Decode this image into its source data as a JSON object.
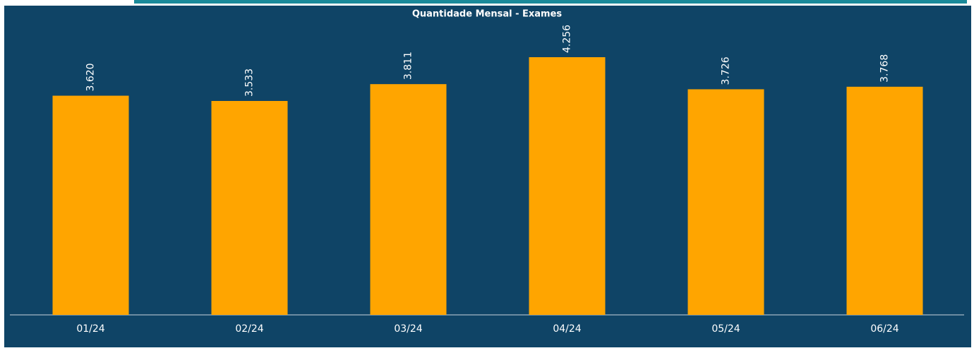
{
  "chart_data": {
    "type": "bar",
    "title": "Quantidade Mensal - Exames",
    "categories": [
      "01/24",
      "02/24",
      "03/24",
      "04/24",
      "05/24",
      "06/24"
    ],
    "values": [
      3620,
      3533,
      3811,
      4256,
      3726,
      3768
    ],
    "value_labels": [
      "3.620",
      "3.533",
      "3.811",
      "4.256",
      "3.726",
      "3.768"
    ],
    "color": "#ffa500"
  }
}
